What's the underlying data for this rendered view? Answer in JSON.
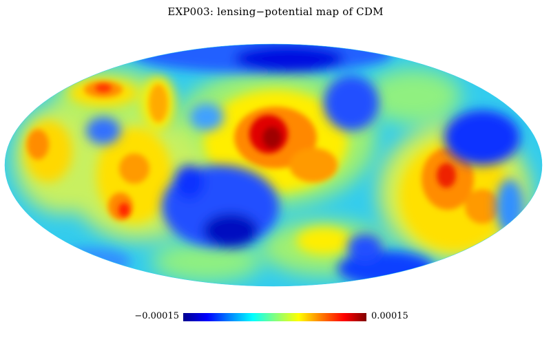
{
  "title": "EXP003: lensing−potential map of CDM",
  "colorbar": {
    "min_label": "−0.00015",
    "max_label": "0.00015",
    "colormap": "jet",
    "colors": [
      "#00008f",
      "#0000ff",
      "#0080ff",
      "#00ffff",
      "#80ff80",
      "#ffff00",
      "#ff8000",
      "#ff0000",
      "#800000"
    ]
  },
  "map": {
    "projection": "Mollweide",
    "background_color": "#33ccee"
  }
}
